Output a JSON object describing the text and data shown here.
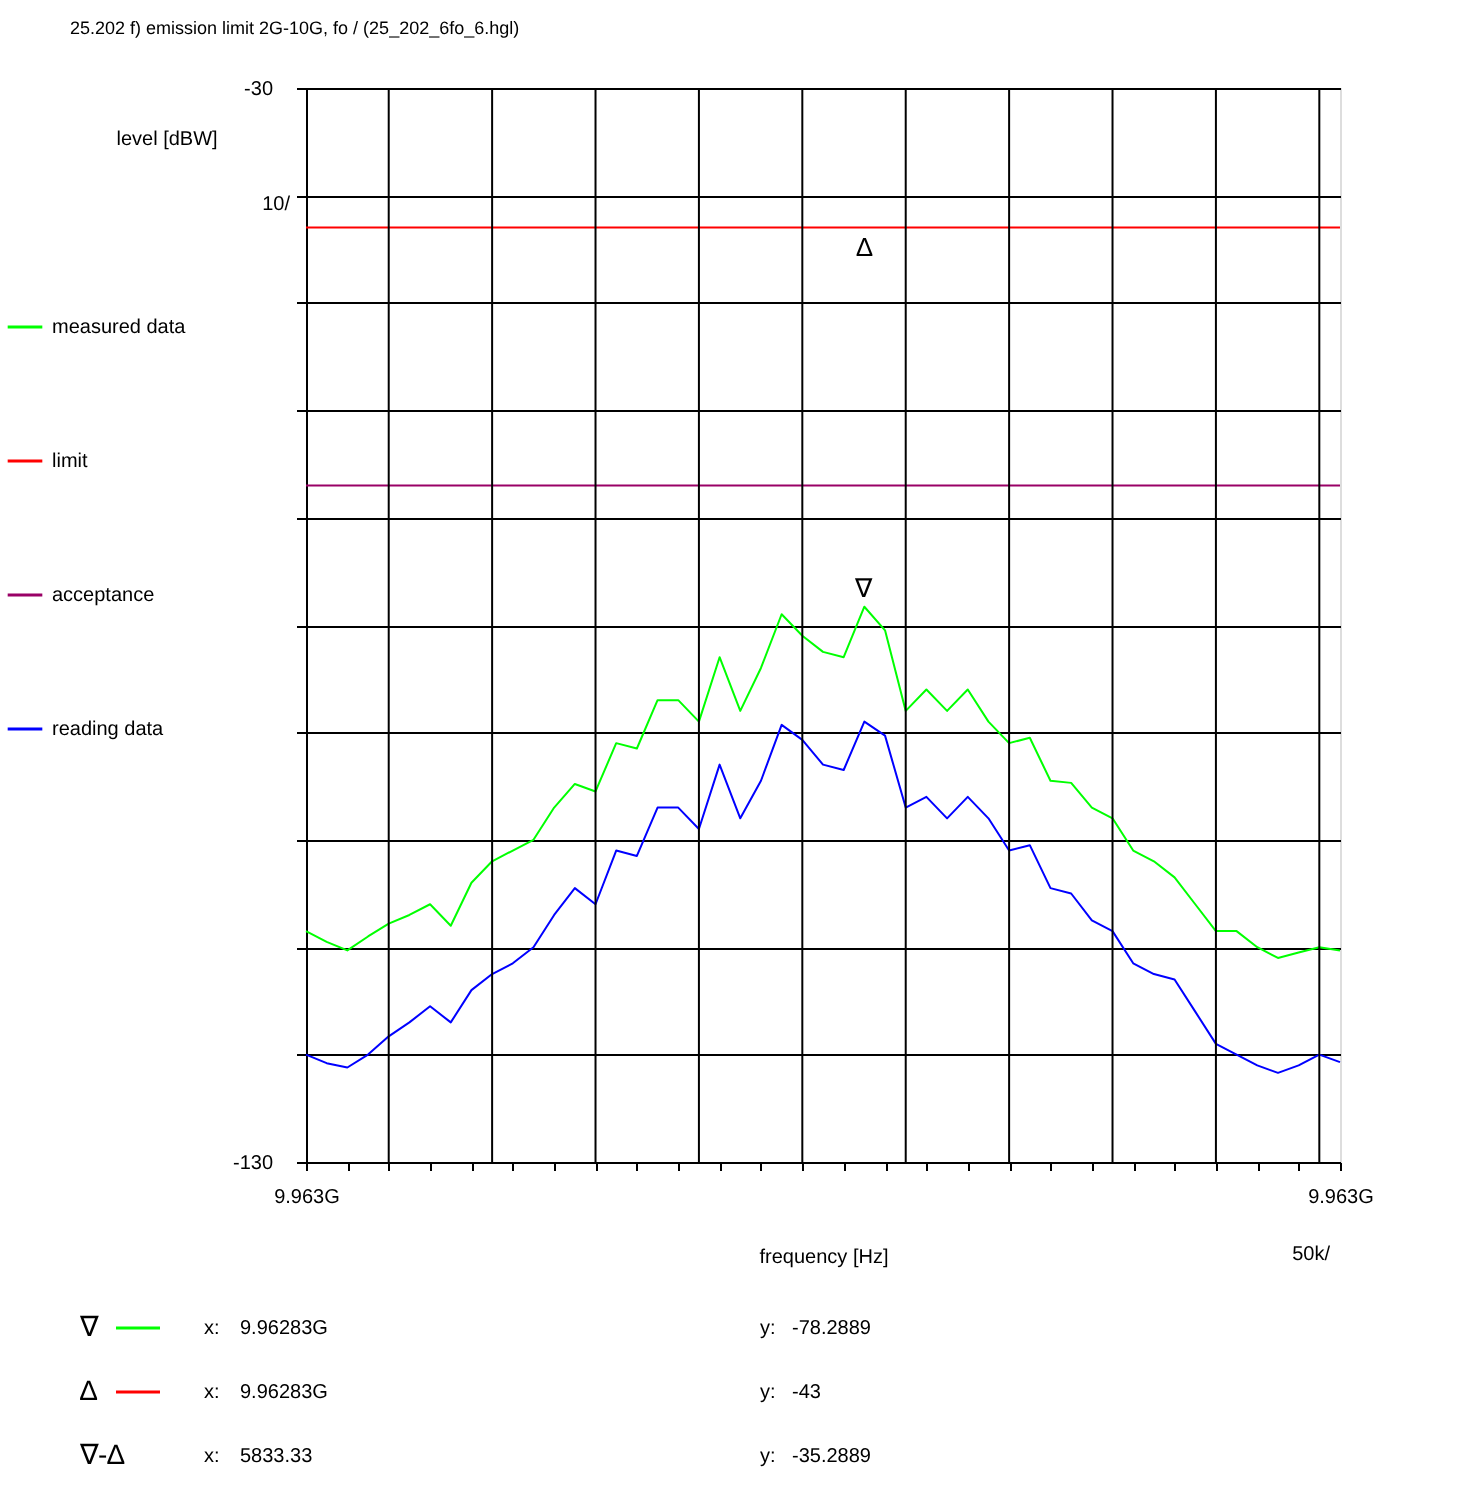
{
  "chart_data": {
    "type": "line",
    "title": "25.202 f) emission limit 2G-10G, fo / (25_202_6fo_6.hgl)",
    "xlabel": "frequency [Hz]",
    "ylabel": "level [dBW]",
    "categories": [
      "9.963G",
      null,
      null,
      null,
      null,
      null,
      null,
      null,
      null,
      null,
      null,
      null,
      null,
      null,
      null,
      null,
      null,
      null,
      null,
      null,
      null,
      null,
      null,
      null,
      null,
      null,
      null,
      null,
      null,
      null,
      null,
      null,
      null,
      null,
      null,
      null,
      null,
      null,
      null,
      null,
      null,
      null,
      null,
      null,
      null,
      null,
      null,
      null,
      null,
      null,
      "9.963G"
    ],
    "series": [
      {
        "name": "measured data",
        "color": "#00ff00",
        "values": [
          -108.5,
          -109.5,
          -110.3,
          -109,
          -107.8,
          -107,
          -106,
          -108,
          -104,
          -102,
          -101,
          -100,
          -97,
          -94.8,
          -95.5,
          -91,
          -91.5,
          -87,
          -87,
          -89,
          -83,
          -88,
          -84,
          -79,
          -81,
          -82.5,
          -83,
          -78.3,
          -80.5,
          -88,
          -86,
          -88,
          -86,
          -89,
          -91,
          -90.5,
          -94.5,
          -94.7,
          -97,
          -98,
          -101,
          -102,
          -103.5,
          -106,
          -108.5,
          -108.5,
          -110,
          -111,
          -110.5,
          -110,
          -110.3
        ]
      },
      {
        "name": "limit",
        "color": "#ff0000",
        "values": [
          -43,
          -43,
          -43,
          -43,
          -43,
          -43,
          -43,
          -43,
          -43,
          -43,
          -43,
          -43,
          -43,
          -43,
          -43,
          -43,
          -43,
          -43,
          -43,
          -43,
          -43,
          -43,
          -43,
          -43,
          -43,
          -43,
          -43,
          -43,
          -43,
          -43,
          -43,
          -43,
          -43,
          -43,
          -43,
          -43,
          -43,
          -43,
          -43,
          -43,
          -43,
          -43,
          -43,
          -43,
          -43,
          -43,
          -43,
          -43,
          -43,
          -43,
          -43
        ]
      },
      {
        "name": "acceptance",
        "color": "#990066",
        "values": [
          -67,
          -67,
          -67,
          -67,
          -67,
          -67,
          -67,
          -67,
          -67,
          -67,
          -67,
          -67,
          -67,
          -67,
          -67,
          -67,
          -67,
          -67,
          -67,
          -67,
          -67,
          -67,
          -67,
          -67,
          -67,
          -67,
          -67,
          -67,
          -67,
          -67,
          -67,
          -67,
          -67,
          -67,
          -67,
          -67,
          -67,
          -67,
          -67,
          -67,
          -67,
          -67,
          -67,
          -67,
          -67,
          -67,
          -67,
          -67,
          -67,
          -67,
          -67
        ]
      },
      {
        "name": "reading data",
        "color": "#0000ff",
        "values": [
          -120,
          -120.8,
          -121.2,
          -120,
          -118.3,
          -117,
          -115.5,
          -117,
          -114,
          -112.5,
          -111.5,
          -110,
          -107,
          -104.5,
          -106,
          -101,
          -101.5,
          -97,
          -97,
          -99,
          -93,
          -98,
          -94.5,
          -89.3,
          -90.7,
          -93,
          -93.5,
          -89,
          -90.3,
          -97,
          -96,
          -98,
          -96,
          -98,
          -101,
          -100.5,
          -104.5,
          -105,
          -107.5,
          -108.5,
          -111.5,
          -112.5,
          -113,
          -116,
          -119,
          -120,
          -121,
          -121.7,
          -121,
          -120,
          -120.7
        ]
      }
    ],
    "ylim": [
      -130,
      -30
    ],
    "yticks": [
      -30,
      {
        "value": -40,
        "label": null
      },
      {
        "value": -50,
        "label": null
      },
      {
        "value": -60,
        "label": null
      },
      {
        "value": -70,
        "label": null
      },
      {
        "value": -80,
        "label": null
      },
      {
        "value": -90,
        "label": null
      },
      {
        "value": -100,
        "label": null
      },
      {
        "value": -110,
        "label": null
      },
      {
        "value": -120,
        "label": null
      },
      -130
    ],
    "grid": true,
    "legend": "left",
    "annotations": [
      "10/",
      "50k/",
      {
        "text": "∇",
        "y": -78.2889
      },
      {
        "text": "∆",
        "y": -43
      },
      "∇",
      "x:",
      "9.96283G",
      "y:",
      "-78.2889",
      "∆",
      "x:",
      "9.96283G",
      "y:",
      "-43",
      "∇-∆",
      "x:",
      "5833.33",
      "y:",
      "-35.2889"
    ]
  }
}
